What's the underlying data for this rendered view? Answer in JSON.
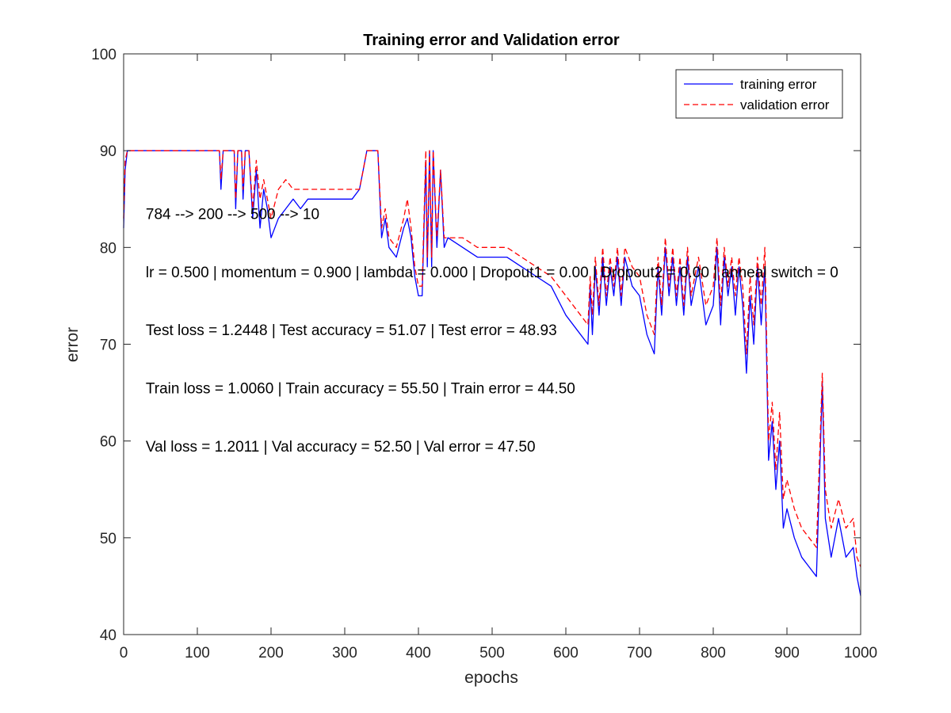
{
  "chart_data": {
    "type": "line",
    "title": "Training error and Validation error",
    "xlabel": "epochs",
    "ylabel": "error",
    "xlim": [
      0,
      1000
    ],
    "ylim": [
      40,
      100
    ],
    "xticks": [
      0,
      100,
      200,
      300,
      400,
      500,
      600,
      700,
      800,
      900,
      1000
    ],
    "yticks": [
      40,
      50,
      60,
      70,
      80,
      90,
      100
    ],
    "grid": false,
    "legend_position": "top-right",
    "series": [
      {
        "name": "training error",
        "color": "#0000ff",
        "dash": "solid",
        "points": [
          [
            0,
            82
          ],
          [
            2,
            88
          ],
          [
            5,
            90
          ],
          [
            20,
            90
          ],
          [
            50,
            90
          ],
          [
            100,
            90
          ],
          [
            130,
            90
          ],
          [
            132,
            86
          ],
          [
            135,
            90
          ],
          [
            150,
            90
          ],
          [
            152,
            84
          ],
          [
            155,
            90
          ],
          [
            160,
            90
          ],
          [
            162,
            85
          ],
          [
            165,
            90
          ],
          [
            170,
            90
          ],
          [
            175,
            83
          ],
          [
            180,
            88
          ],
          [
            185,
            82
          ],
          [
            190,
            86
          ],
          [
            195,
            84
          ],
          [
            200,
            81
          ],
          [
            210,
            83
          ],
          [
            220,
            84
          ],
          [
            230,
            85
          ],
          [
            240,
            84
          ],
          [
            250,
            85
          ],
          [
            270,
            85
          ],
          [
            290,
            85
          ],
          [
            310,
            85
          ],
          [
            320,
            86
          ],
          [
            325,
            88
          ],
          [
            330,
            90
          ],
          [
            345,
            90
          ],
          [
            350,
            81
          ],
          [
            355,
            83
          ],
          [
            360,
            80
          ],
          [
            370,
            79
          ],
          [
            380,
            82
          ],
          [
            385,
            83
          ],
          [
            390,
            81
          ],
          [
            395,
            77
          ],
          [
            400,
            75
          ],
          [
            405,
            75
          ],
          [
            410,
            89
          ],
          [
            412,
            78
          ],
          [
            415,
            90
          ],
          [
            418,
            78
          ],
          [
            420,
            90
          ],
          [
            425,
            80
          ],
          [
            430,
            88
          ],
          [
            435,
            80
          ],
          [
            440,
            81
          ],
          [
            460,
            80
          ],
          [
            480,
            79
          ],
          [
            500,
            79
          ],
          [
            520,
            79
          ],
          [
            540,
            78
          ],
          [
            560,
            77
          ],
          [
            580,
            76
          ],
          [
            600,
            73
          ],
          [
            620,
            71
          ],
          [
            630,
            70
          ],
          [
            633,
            76
          ],
          [
            636,
            71
          ],
          [
            640,
            78
          ],
          [
            645,
            73
          ],
          [
            650,
            79
          ],
          [
            655,
            74
          ],
          [
            660,
            78
          ],
          [
            665,
            75
          ],
          [
            670,
            79
          ],
          [
            675,
            74
          ],
          [
            680,
            79
          ],
          [
            690,
            76
          ],
          [
            700,
            75
          ],
          [
            710,
            71
          ],
          [
            720,
            69
          ],
          [
            725,
            78
          ],
          [
            730,
            73
          ],
          [
            735,
            80
          ],
          [
            740,
            75
          ],
          [
            745,
            79
          ],
          [
            750,
            74
          ],
          [
            755,
            78
          ],
          [
            760,
            73
          ],
          [
            765,
            79
          ],
          [
            770,
            74
          ],
          [
            780,
            78
          ],
          [
            790,
            72
          ],
          [
            800,
            74
          ],
          [
            805,
            80
          ],
          [
            810,
            72
          ],
          [
            815,
            79
          ],
          [
            820,
            75
          ],
          [
            825,
            78
          ],
          [
            830,
            73
          ],
          [
            835,
            78
          ],
          [
            840,
            74
          ],
          [
            845,
            67
          ],
          [
            850,
            75
          ],
          [
            855,
            70
          ],
          [
            860,
            78
          ],
          [
            865,
            72
          ],
          [
            870,
            78
          ],
          [
            875,
            58
          ],
          [
            880,
            62
          ],
          [
            885,
            55
          ],
          [
            890,
            60
          ],
          [
            895,
            51
          ],
          [
            900,
            53
          ],
          [
            910,
            50
          ],
          [
            920,
            48
          ],
          [
            930,
            47
          ],
          [
            940,
            46
          ],
          [
            945,
            58
          ],
          [
            948,
            66
          ],
          [
            952,
            52
          ],
          [
            960,
            48
          ],
          [
            970,
            52
          ],
          [
            980,
            48
          ],
          [
            990,
            49
          ],
          [
            995,
            46
          ],
          [
            1000,
            44
          ]
        ]
      },
      {
        "name": "validation error",
        "color": "#ff0000",
        "dash": "dashed",
        "points": [
          [
            0,
            83
          ],
          [
            2,
            89
          ],
          [
            5,
            90
          ],
          [
            20,
            90
          ],
          [
            50,
            90
          ],
          [
            100,
            90
          ],
          [
            130,
            90
          ],
          [
            132,
            87
          ],
          [
            135,
            90
          ],
          [
            150,
            90
          ],
          [
            152,
            85
          ],
          [
            155,
            90
          ],
          [
            160,
            90
          ],
          [
            162,
            86
          ],
          [
            165,
            90
          ],
          [
            170,
            90
          ],
          [
            175,
            84
          ],
          [
            180,
            89
          ],
          [
            185,
            85
          ],
          [
            190,
            87
          ],
          [
            195,
            85
          ],
          [
            200,
            83
          ],
          [
            210,
            86
          ],
          [
            220,
            87
          ],
          [
            230,
            86
          ],
          [
            250,
            86
          ],
          [
            270,
            86
          ],
          [
            290,
            86
          ],
          [
            310,
            86
          ],
          [
            320,
            86
          ],
          [
            325,
            88
          ],
          [
            330,
            90
          ],
          [
            345,
            90
          ],
          [
            350,
            82
          ],
          [
            355,
            84
          ],
          [
            360,
            81
          ],
          [
            370,
            80
          ],
          [
            380,
            83
          ],
          [
            385,
            85
          ],
          [
            390,
            82
          ],
          [
            395,
            78
          ],
          [
            400,
            76
          ],
          [
            405,
            76
          ],
          [
            410,
            90
          ],
          [
            412,
            79
          ],
          [
            415,
            90
          ],
          [
            418,
            79
          ],
          [
            420,
            90
          ],
          [
            425,
            81
          ],
          [
            430,
            88
          ],
          [
            435,
            81
          ],
          [
            440,
            81
          ],
          [
            460,
            81
          ],
          [
            480,
            80
          ],
          [
            500,
            80
          ],
          [
            520,
            80
          ],
          [
            540,
            79
          ],
          [
            560,
            78
          ],
          [
            580,
            77
          ],
          [
            600,
            75
          ],
          [
            620,
            73
          ],
          [
            630,
            72
          ],
          [
            633,
            77
          ],
          [
            636,
            73
          ],
          [
            640,
            79
          ],
          [
            645,
            74
          ],
          [
            650,
            80
          ],
          [
            655,
            75
          ],
          [
            660,
            79
          ],
          [
            665,
            76
          ],
          [
            670,
            80
          ],
          [
            675,
            75
          ],
          [
            680,
            80
          ],
          [
            690,
            78
          ],
          [
            700,
            77
          ],
          [
            710,
            73
          ],
          [
            720,
            71
          ],
          [
            725,
            79
          ],
          [
            730,
            74
          ],
          [
            735,
            81
          ],
          [
            740,
            76
          ],
          [
            745,
            80
          ],
          [
            750,
            75
          ],
          [
            755,
            79
          ],
          [
            760,
            74
          ],
          [
            765,
            80
          ],
          [
            770,
            75
          ],
          [
            780,
            79
          ],
          [
            790,
            74
          ],
          [
            800,
            76
          ],
          [
            805,
            81
          ],
          [
            810,
            74
          ],
          [
            815,
            80
          ],
          [
            820,
            76
          ],
          [
            825,
            79
          ],
          [
            830,
            75
          ],
          [
            835,
            79
          ],
          [
            840,
            76
          ],
          [
            845,
            69
          ],
          [
            850,
            77
          ],
          [
            855,
            72
          ],
          [
            860,
            79
          ],
          [
            865,
            74
          ],
          [
            870,
            80
          ],
          [
            875,
            60
          ],
          [
            880,
            64
          ],
          [
            885,
            57
          ],
          [
            890,
            63
          ],
          [
            895,
            54
          ],
          [
            900,
            56
          ],
          [
            910,
            53
          ],
          [
            920,
            51
          ],
          [
            930,
            50
          ],
          [
            940,
            49
          ],
          [
            945,
            60
          ],
          [
            948,
            67
          ],
          [
            952,
            55
          ],
          [
            960,
            51
          ],
          [
            970,
            54
          ],
          [
            980,
            51
          ],
          [
            990,
            52
          ],
          [
            995,
            48
          ],
          [
            1000,
            47
          ]
        ]
      }
    ],
    "annotations": [
      {
        "text": "784 --> 200 --> 500 --> 10",
        "x": 30,
        "y": 83.5
      },
      {
        "text": "lr = 0.500 | momentum = 0.900 | lambda = 0.000 | Dropout1 = 0.00 | Dropout2 = 0.00 | anneal switch = 0",
        "x": 30,
        "y": 77.5
      },
      {
        "text": "Test loss = 1.2448 | Test accuracy = 51.07 | Test error = 48.93",
        "x": 30,
        "y": 71.5
      },
      {
        "text": "Train loss = 1.0060 | Train accuracy = 55.50 | Train error = 44.50",
        "x": 30,
        "y": 65.5
      },
      {
        "text": "Val loss = 1.2011 | Val accuracy = 52.50 | Val error = 47.50",
        "x": 30,
        "y": 59.5
      }
    ]
  }
}
